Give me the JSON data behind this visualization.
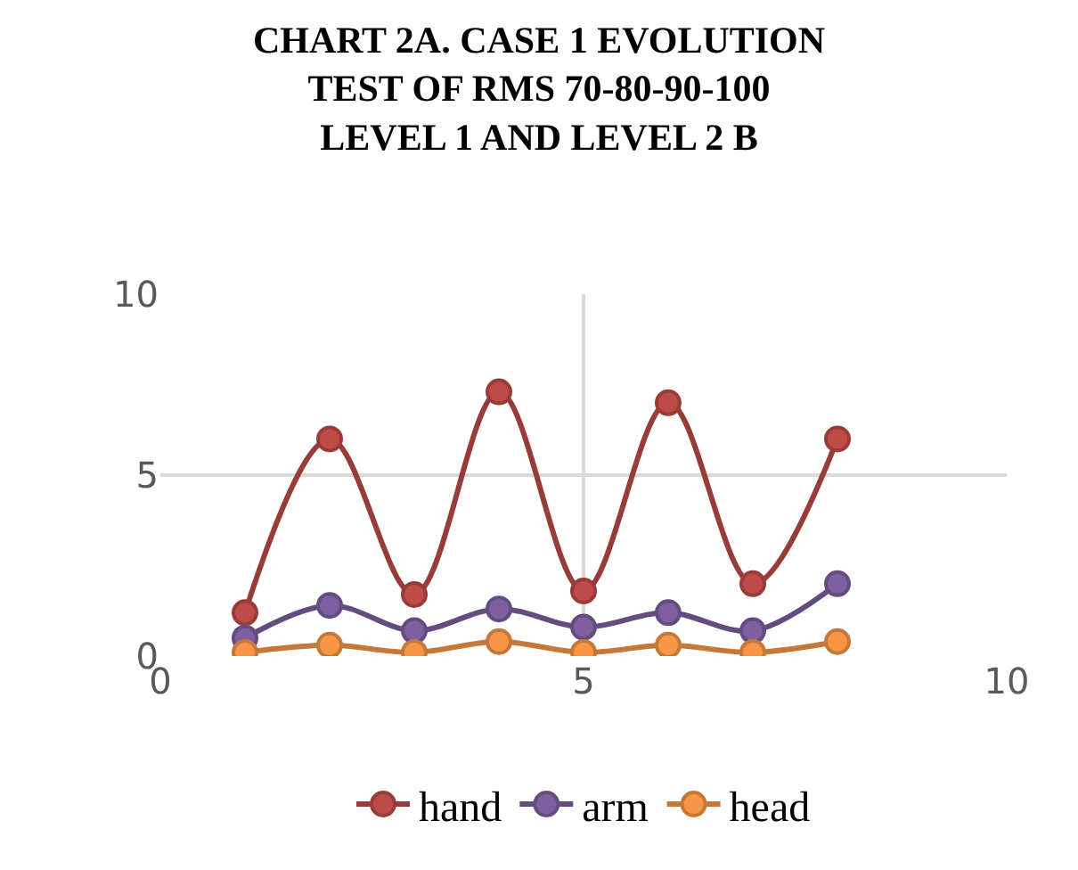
{
  "chart_data": {
    "type": "line",
    "title": "CHART 2A. CASE 1 EVOLUTION\nTEST OF RMS 70-80-90-100\nLEVEL 1 AND LEVEL 2 B",
    "x": [
      1,
      2,
      3,
      4,
      5,
      6,
      7,
      8
    ],
    "series": [
      {
        "name": "hand",
        "color": "#be4b48",
        "values": [
          1.2,
          6.0,
          1.7,
          7.3,
          1.8,
          7.0,
          2.0,
          6.0
        ]
      },
      {
        "name": "arm",
        "color": "#7d60a0",
        "values": [
          0.5,
          1.4,
          0.7,
          1.3,
          0.8,
          1.2,
          0.7,
          2.0
        ]
      },
      {
        "name": "head",
        "color": "#f79646",
        "values": [
          0.1,
          0.3,
          0.1,
          0.4,
          0.1,
          0.3,
          0.1,
          0.4
        ]
      }
    ],
    "xlim": [
      0,
      10
    ],
    "xticks": [
      0,
      5,
      10
    ],
    "ylim": [
      0,
      10
    ],
    "yticks": [
      0,
      5,
      10
    ],
    "grid": true,
    "legend": "bottom",
    "marker": "circle",
    "line_style": "solid"
  }
}
